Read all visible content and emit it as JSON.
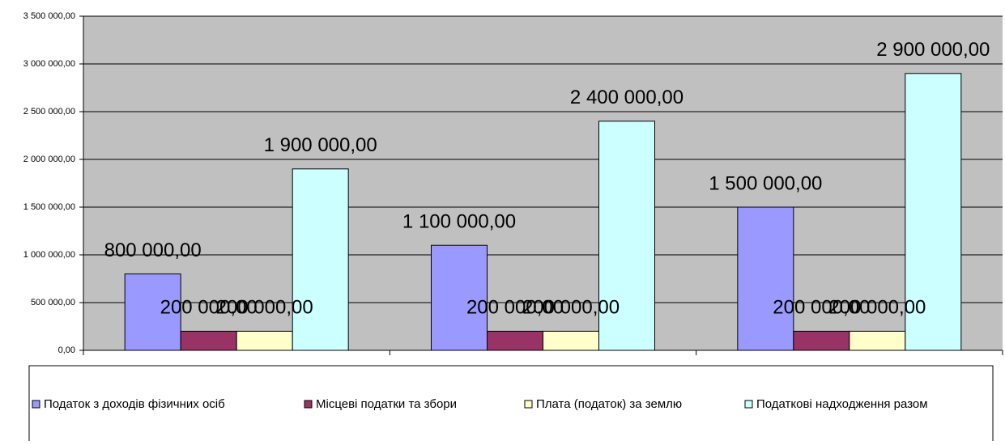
{
  "chart_data": {
    "type": "bar",
    "categories": [
      null,
      null,
      null
    ],
    "series": [
      {
        "name": "Податок з доходів фізичних осіб",
        "color": "#9999ff",
        "values": [
          800000,
          1100000,
          1500000
        ],
        "value_labels": [
          "800 000,00",
          "1 100 000,00",
          "1 500 000,00"
        ]
      },
      {
        "name": "Місцеві податки та збори",
        "color": "#993366",
        "values": [
          200000,
          200000,
          200000
        ],
        "value_labels": [
          "200 000,00",
          "200 000,00",
          "200 000,00"
        ]
      },
      {
        "name": "Плата (податок) за землю",
        "color": "#ffffcc",
        "values": [
          200000,
          200000,
          200000
        ],
        "value_labels": [
          "200 000,00",
          "200 000,00",
          "200 000,00"
        ]
      },
      {
        "name": "Податкові надходження разом",
        "color": "#ccffff",
        "values": [
          1900000,
          2400000,
          2900000
        ],
        "value_labels": [
          "1 900 000,00",
          "2 400 000,00",
          "2 900 000,00"
        ]
      }
    ],
    "ylim": [
      0,
      3500000
    ],
    "yticks": [
      {
        "value": 0,
        "label": "0,00"
      },
      {
        "value": 500000,
        "label": "500 000,00"
      },
      {
        "value": 1000000,
        "label": "1 000 000,00"
      },
      {
        "value": 1500000,
        "label": "1 500 000,00"
      },
      {
        "value": 2000000,
        "label": "2 000 000,00"
      },
      {
        "value": 2500000,
        "label": "2 500 000,00"
      },
      {
        "value": 3000000,
        "label": "3 000 000,00"
      },
      {
        "value": 3500000,
        "label": "3 500 000,00"
      }
    ],
    "grid": true,
    "plot_background": "#c0c0c0",
    "legend": "bottom"
  }
}
